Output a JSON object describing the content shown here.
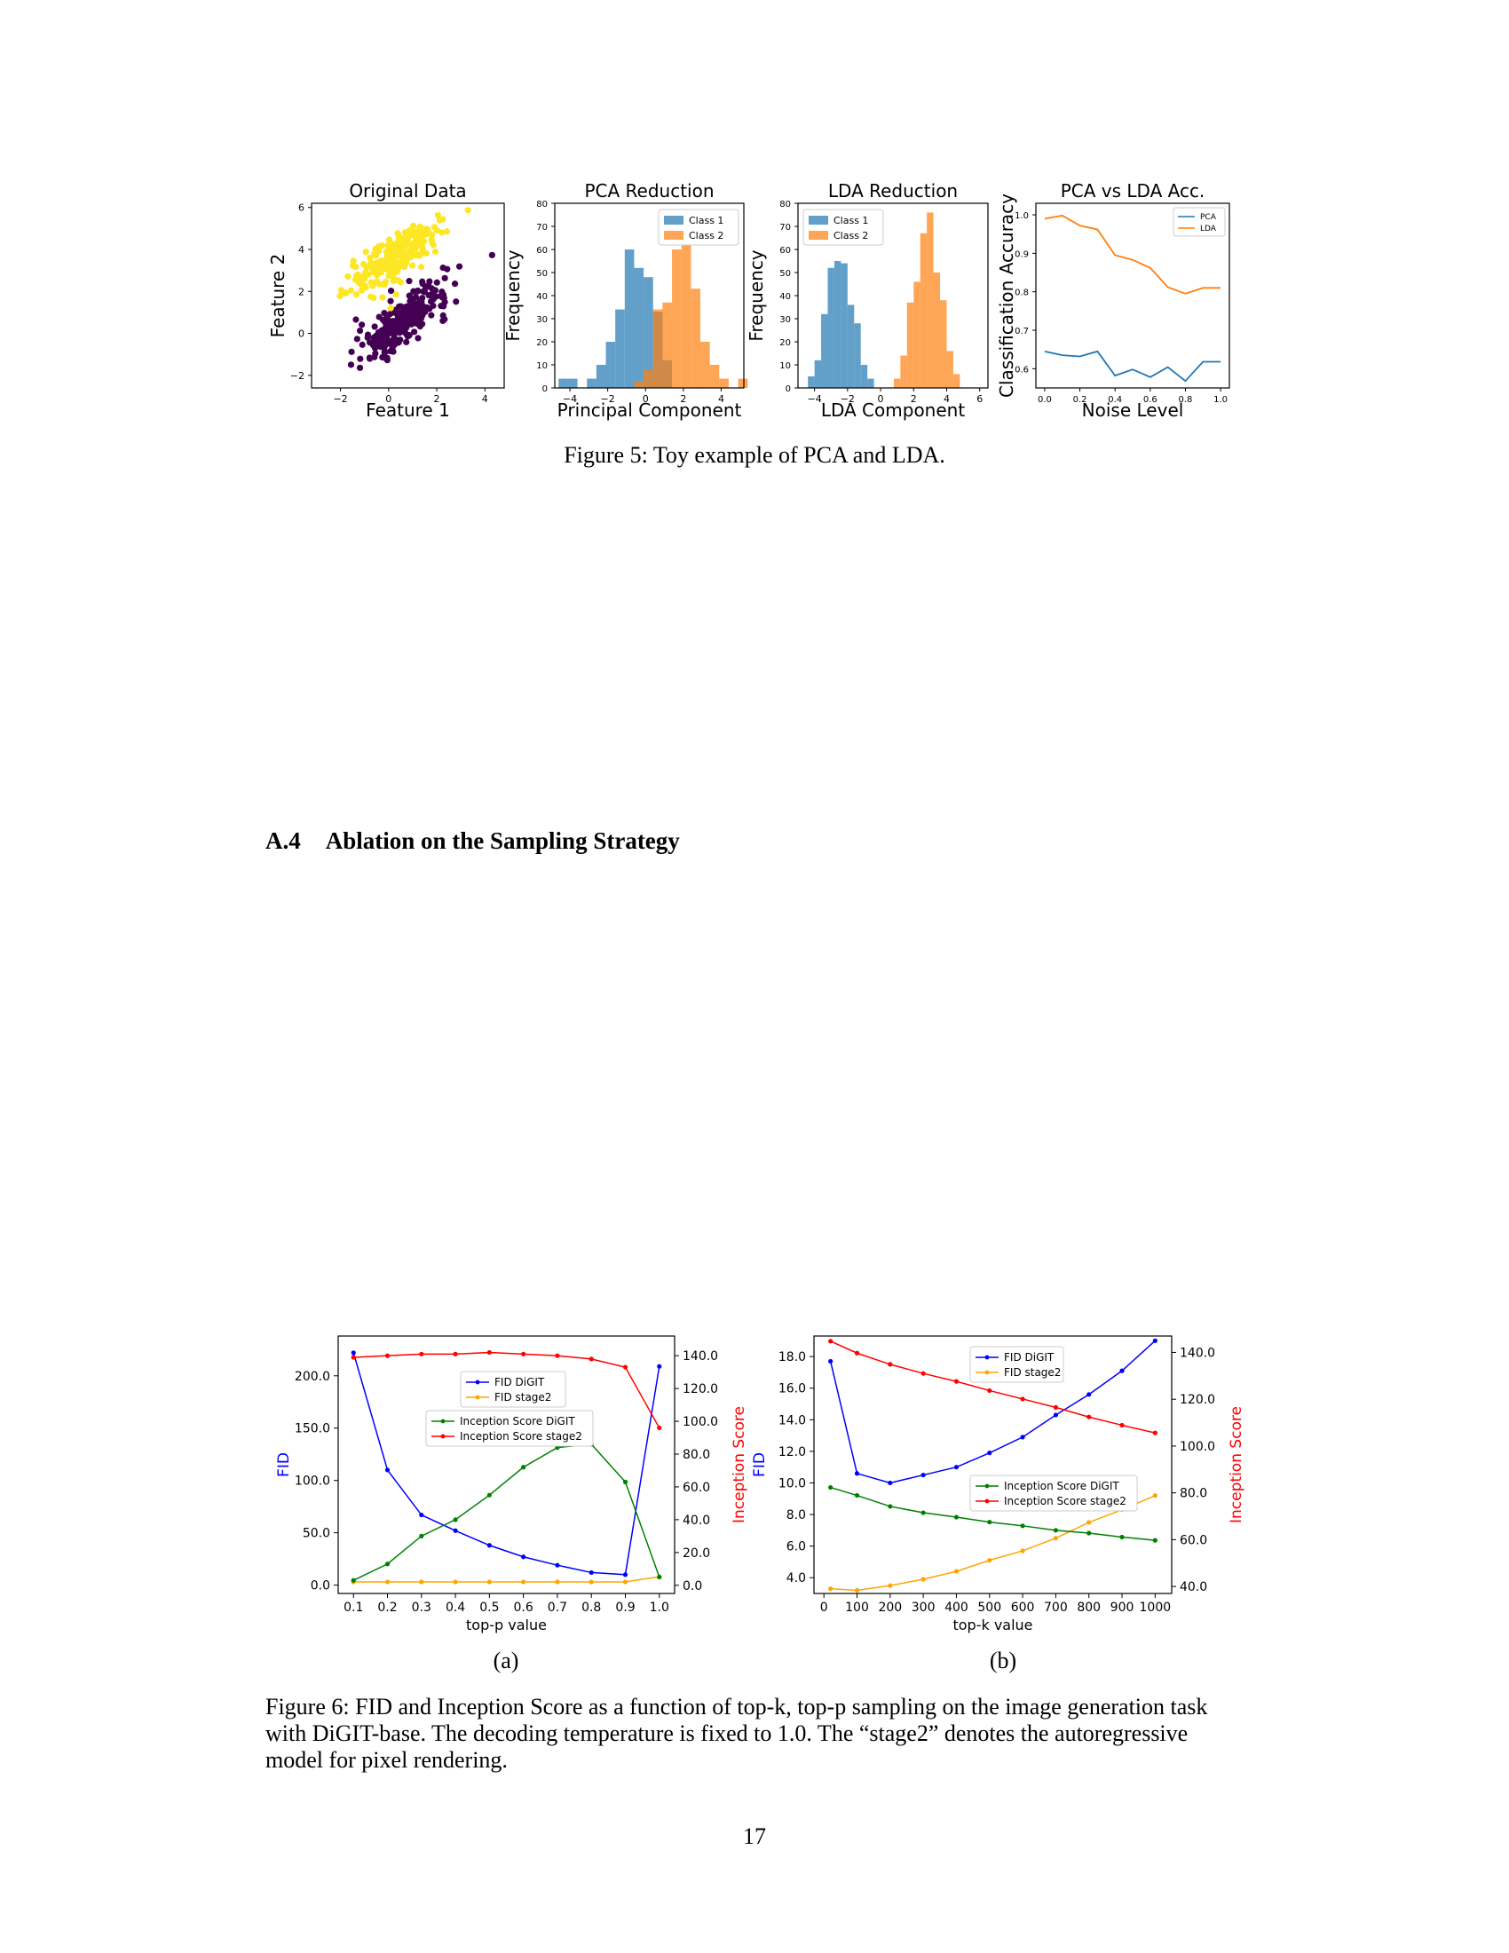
{
  "figure5": {
    "caption": "Figure 5: Toy example of PCA and LDA.",
    "panels": [
      {
        "title": "Original Data",
        "xlabel": "Feature 1",
        "ylabel": "Feature 2",
        "xticks": [
          "−2",
          "0",
          "2",
          "4"
        ],
        "yticks": [
          "−2",
          "0",
          "2",
          "4",
          "6"
        ]
      },
      {
        "title": "PCA Reduction",
        "xlabel": "Principal Component",
        "ylabel": "Frequency",
        "xticks": [
          "−4",
          "−2",
          "0",
          "2",
          "4"
        ],
        "yticks": [
          "0",
          "10",
          "20",
          "30",
          "40",
          "50",
          "60",
          "70",
          "80"
        ],
        "legend": [
          "Class 1",
          "Class 2"
        ]
      },
      {
        "title": "LDA Reduction",
        "xlabel": "LDA Component",
        "ylabel": "Frequency",
        "xticks": [
          "−4",
          "−2",
          "0",
          "2",
          "4",
          "6"
        ],
        "yticks": [
          "0",
          "10",
          "20",
          "30",
          "40",
          "50",
          "60",
          "70",
          "80"
        ],
        "legend": [
          "Class 1",
          "Class 2"
        ]
      },
      {
        "title": "PCA vs LDA Acc.",
        "xlabel": "Noise Level",
        "ylabel": "Classification Accuracy",
        "xticks": [
          "0.0",
          "0.2",
          "0.4",
          "0.6",
          "0.8",
          "1.0"
        ],
        "yticks": [
          "0.6",
          "0.7",
          "0.8",
          "0.9",
          "1.0"
        ],
        "legend": [
          "PCA",
          "LDA"
        ]
      }
    ]
  },
  "section": {
    "number": "A.4",
    "title": "Ablation on the Sampling Strategy"
  },
  "figure6": {
    "sub_a": "(a)",
    "sub_b": "(b)",
    "caption_lines": [
      "Figure 6: FID and Inception Score as a function of top-k, top-p sampling on the image generation task",
      "with DiGIT-base. The decoding temperature is fixed to 1.0. The “stage2” denotes the autoregressive",
      "model for pixel rendering."
    ],
    "panel_a": {
      "xlabel": "top-p value",
      "ylabel_left": "FID",
      "ylabel_right": "Inception Score",
      "yticks_left": [
        "0.0",
        "50.0",
        "100.0",
        "150.0",
        "200.0"
      ],
      "yticks_right": [
        "0.0",
        "20.0",
        "40.0",
        "60.0",
        "80.0",
        "100.0",
        "120.0",
        "140.0"
      ],
      "xticks": [
        "0.1",
        "0.2",
        "0.3",
        "0.4",
        "0.5",
        "0.6",
        "0.7",
        "0.8",
        "0.9",
        "1.0"
      ],
      "legend_fid": [
        "FID DiGIT",
        "FID stage2"
      ],
      "legend_is": [
        "Inception Score DiGIT",
        "Inception Score stage2"
      ]
    },
    "panel_b": {
      "xlabel": "top-k value",
      "ylabel_left": "FID",
      "ylabel_right": "Inception Score",
      "yticks_left": [
        "4.0",
        "6.0",
        "8.0",
        "10.0",
        "12.0",
        "14.0",
        "16.0",
        "18.0"
      ],
      "yticks_right": [
        "40.0",
        "60.0",
        "80.0",
        "100.0",
        "120.0",
        "140.0"
      ],
      "xticks": [
        "0",
        "100",
        "200",
        "300",
        "400",
        "500",
        "600",
        "700",
        "800",
        "900",
        "1000"
      ],
      "legend_fid": [
        "FID DiGIT",
        "FID stage2"
      ],
      "legend_is": [
        "Inception Score DiGIT",
        "Inception Score stage2"
      ]
    }
  },
  "page_number": "17",
  "chart_data": [
    {
      "type": "scatter",
      "title": "Original Data",
      "xlabel": "Feature 1",
      "ylabel": "Feature 2",
      "xlim": [
        -3.2,
        4.8
      ],
      "ylim": [
        -2.6,
        6.2
      ],
      "series": [
        {
          "color": "#fde725",
          "description": "class cluster centered near (0.5, 3.5)"
        },
        {
          "color": "#440154",
          "description": "class cluster centered near (0.5, 0.5)"
        }
      ]
    },
    {
      "type": "bar",
      "title": "PCA Reduction",
      "xlabel": "Principal Component",
      "ylabel": "Frequency",
      "ylim": [
        0,
        80
      ],
      "series": [
        {
          "name": "Class 1",
          "color": "#1f77b4",
          "bins": [
            -4.6,
            -4.1,
            -3.6,
            -3.1,
            -2.6,
            -2.1,
            -1.6,
            -1.1,
            -0.6,
            -0.1,
            0.4,
            0.9
          ],
          "values": [
            4,
            4,
            0,
            4,
            10,
            20,
            34,
            60,
            52,
            48,
            33,
            12
          ]
        },
        {
          "name": "Class 2",
          "color": "#ff7f0e",
          "bins": [
            -0.6,
            -0.1,
            0.4,
            0.9,
            1.4,
            1.9,
            2.4,
            2.9,
            3.4,
            3.9,
            4.4,
            4.9
          ],
          "values": [
            3,
            8,
            34,
            37,
            60,
            68,
            43,
            20,
            10,
            4,
            0,
            4
          ]
        }
      ]
    },
    {
      "type": "bar",
      "title": "LDA Reduction",
      "xlabel": "LDA Component",
      "ylabel": "Frequency",
      "ylim": [
        0,
        80
      ],
      "series": [
        {
          "name": "Class 1",
          "color": "#1f77b4",
          "bins": [
            -4.4,
            -4.0,
            -3.6,
            -3.2,
            -2.8,
            -2.4,
            -2.0,
            -1.6,
            -1.2,
            -0.8
          ],
          "values": [
            5,
            12,
            32,
            52,
            55,
            54,
            36,
            28,
            10,
            4
          ]
        },
        {
          "name": "Class 2",
          "color": "#ff7f0e",
          "bins": [
            0.8,
            1.2,
            1.6,
            2.0,
            2.4,
            2.8,
            3.2,
            3.6,
            4.0,
            4.4
          ],
          "values": [
            4,
            14,
            37,
            46,
            67,
            76,
            50,
            38,
            16,
            6
          ]
        }
      ]
    },
    {
      "type": "line",
      "title": "PCA vs LDA Acc.",
      "xlabel": "Noise Level",
      "ylabel": "Classification Accuracy",
      "ylim": [
        0.55,
        1.03
      ],
      "x": [
        0.0,
        0.1,
        0.2,
        0.3,
        0.4,
        0.5,
        0.6,
        0.7,
        0.8,
        0.9,
        1.0
      ],
      "series": [
        {
          "name": "PCA",
          "color": "#1f77b4",
          "values": [
            0.645,
            0.635,
            0.632,
            0.645,
            0.582,
            0.598,
            0.578,
            0.604,
            0.568,
            0.618,
            0.618
          ]
        },
        {
          "name": "LDA",
          "color": "#ff7f0e",
          "values": [
            0.99,
            0.998,
            0.972,
            0.962,
            0.895,
            0.883,
            0.862,
            0.812,
            0.795,
            0.81,
            0.81
          ]
        }
      ]
    },
    {
      "type": "line",
      "xlabel": "top-p value",
      "ylabel": "FID",
      "y2label": "Inception Score",
      "ylim": [
        -8,
        238
      ],
      "y2lim": [
        -5,
        152
      ],
      "x": [
        0.1,
        0.2,
        0.3,
        0.4,
        0.5,
        0.6,
        0.7,
        0.8,
        0.9,
        1.0
      ],
      "series": [
        {
          "name": "FID DiGIT",
          "axis": "left",
          "color": "#0000ff",
          "values": [
            222,
            110,
            67,
            52,
            38,
            27,
            19,
            12,
            10,
            209
          ]
        },
        {
          "name": "FID stage2",
          "axis": "left",
          "color": "#ffa500",
          "values": [
            3,
            3,
            3,
            3,
            3,
            3,
            3,
            3,
            3,
            8
          ]
        },
        {
          "name": "Inception Score DiGIT",
          "axis": "right",
          "color": "#008000",
          "values": [
            3,
            13,
            30,
            40,
            55,
            72,
            84,
            86,
            63,
            5
          ]
        },
        {
          "name": "Inception Score stage2",
          "axis": "right",
          "color": "#ff0000",
          "values": [
            139,
            140,
            141,
            141,
            142,
            141,
            140,
            138,
            133,
            96
          ]
        }
      ]
    },
    {
      "type": "line",
      "xlabel": "top-k value",
      "ylabel": "FID",
      "y2label": "Inception Score",
      "ylim": [
        3.0,
        19.3
      ],
      "y2lim": [
        37,
        147
      ],
      "x": [
        20,
        100,
        200,
        300,
        400,
        500,
        600,
        700,
        800,
        900,
        1000
      ],
      "series": [
        {
          "name": "FID DiGIT",
          "axis": "left",
          "color": "#0000ff",
          "values": [
            17.7,
            10.6,
            10.0,
            10.5,
            11.0,
            11.9,
            12.9,
            14.3,
            15.6,
            17.1,
            19.0
          ]
        },
        {
          "name": "FID stage2",
          "axis": "left",
          "color": "#ffa500",
          "values": [
            3.3,
            3.2,
            3.5,
            3.9,
            4.4,
            5.1,
            5.7,
            6.5,
            7.5,
            8.3,
            9.2
          ]
        },
        {
          "name": "Inception Score DiGIT",
          "axis": "right",
          "color": "#008000",
          "values": [
            82.3,
            78.9,
            74.2,
            71.5,
            69.6,
            67.5,
            65.9,
            64.0,
            62.8,
            61.1,
            59.7
          ]
        },
        {
          "name": "Inception Score stage2",
          "axis": "right",
          "color": "#ff0000",
          "values": [
            144.8,
            139.7,
            134.9,
            131.0,
            127.6,
            123.7,
            120.1,
            116.5,
            112.4,
            108.9,
            105.6
          ]
        }
      ]
    }
  ]
}
